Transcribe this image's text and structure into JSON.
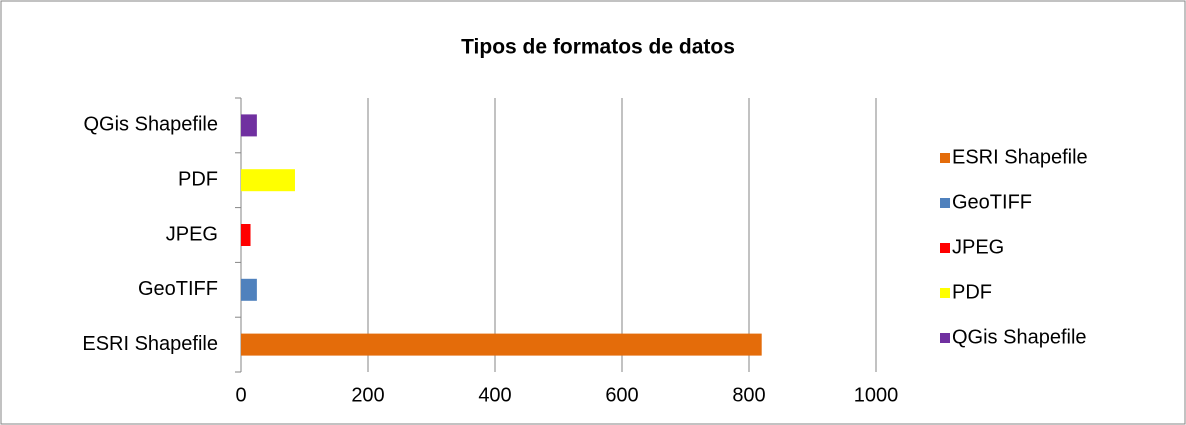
{
  "chart_data": {
    "type": "barh",
    "title": "Tipos de formatos de datos",
    "categories": [
      "ESRI Shapefile",
      "GeoTIFF",
      "JPEG",
      "PDF",
      "QGis Shapefile"
    ],
    "values": [
      820,
      25,
      15,
      85,
      25
    ],
    "colors": [
      "#e46c0a",
      "#4f81bd",
      "#ff0000",
      "#ffff00",
      "#7030a0"
    ],
    "xlim": [
      0,
      1000
    ],
    "xticks": [
      0,
      200,
      400,
      600,
      800,
      1000
    ],
    "grid": true,
    "legend": "right"
  }
}
